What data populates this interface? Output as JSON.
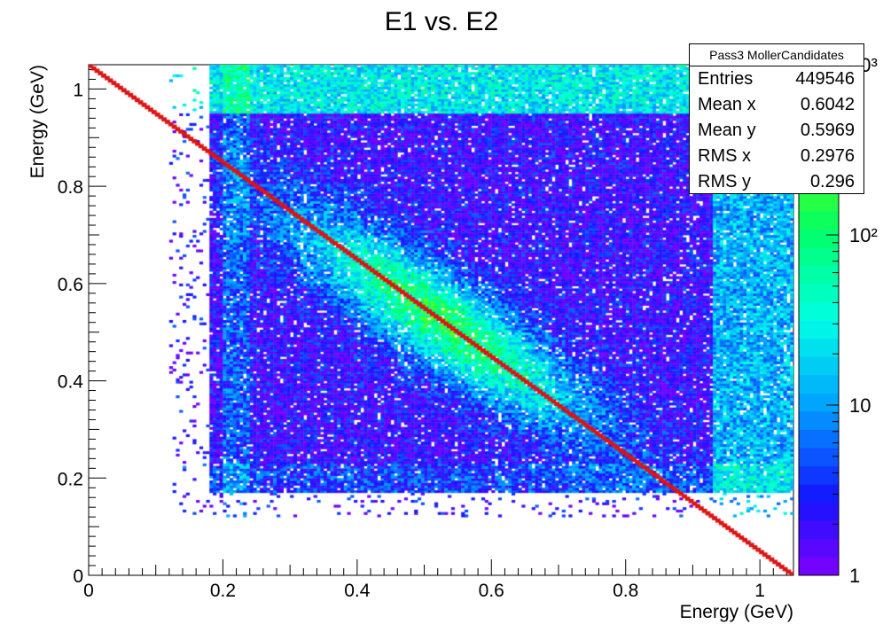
{
  "chart_data": {
    "type": "heatmap",
    "title": "E1 vs. E2",
    "xlabel": "Energy (GeV)",
    "ylabel": "Energy (GeV)",
    "xlim": [
      0,
      1.05
    ],
    "ylim": [
      0,
      1.05
    ],
    "x_ticks": [
      "0",
      "0.2",
      "0.4",
      "0.6",
      "0.8",
      "1"
    ],
    "y_ticks": [
      "0",
      "0.2",
      "0.4",
      "0.6",
      "0.8",
      "1"
    ],
    "z_scale": "log",
    "z_range": [
      1,
      1000
    ],
    "z_ticks": [
      "1",
      "10",
      "10²",
      "10³"
    ],
    "palette": "rainbow (violet → blue → cyan → green → yellow)",
    "features": {
      "diagonal_line": "E1 + E2 ≈ 1.05 GeV (red, highest density)",
      "peak_region_center": [
        0.52,
        0.52
      ],
      "populated_x_range": [
        0.18,
        1.05
      ],
      "populated_y_range": [
        0.17,
        1.05
      ]
    },
    "stats": {
      "name": "Pass3 MollerCandidates",
      "rows": [
        {
          "label": "Entries",
          "value": "449546"
        },
        {
          "label": "Mean x",
          "value": "0.6042"
        },
        {
          "label": "Mean y",
          "value": "0.5969"
        },
        {
          "label": "RMS x",
          "value": "0.2976"
        },
        {
          "label": "RMS y",
          "value": "0.296"
        }
      ]
    }
  }
}
